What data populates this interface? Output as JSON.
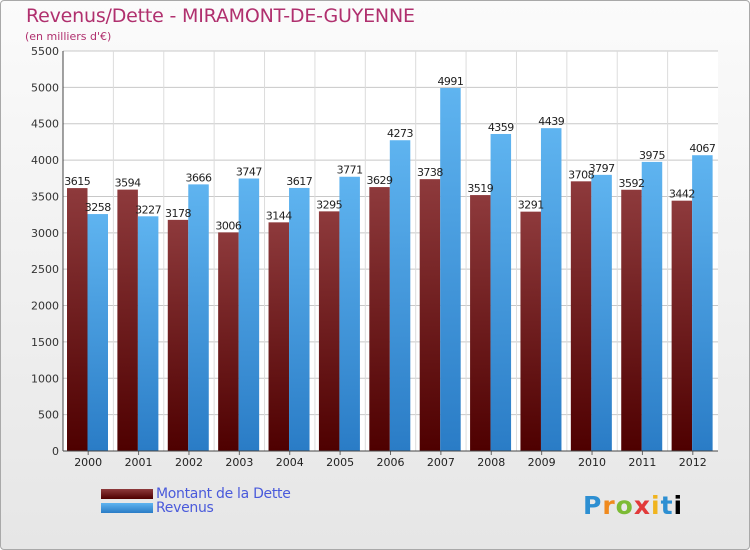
{
  "header": {
    "title": "Revenus/Dette - MIRAMONT-DE-GUYENNE",
    "subtitle": "(en milliers d'€)"
  },
  "chart_data": {
    "type": "bar",
    "title": "Revenus/Dette - MIRAMONT-DE-GUYENNE",
    "ylabel": "(en milliers d'€)",
    "xlabel": "",
    "ylim": [
      0,
      5500
    ],
    "yticks": [
      0,
      500,
      1000,
      1500,
      2000,
      2500,
      3000,
      3500,
      4000,
      4500,
      5000,
      5500
    ],
    "categories": [
      "2000",
      "2001",
      "2002",
      "2003",
      "2004",
      "2005",
      "2006",
      "2007",
      "2008",
      "2009",
      "2010",
      "2011",
      "2012"
    ],
    "series": [
      {
        "name": "Montant de la Dette",
        "color": "#7a1f22",
        "values": [
          3615,
          3594,
          3178,
          3006,
          3144,
          3295,
          3629,
          3738,
          3519,
          3291,
          3708,
          3592,
          3442
        ],
        "labels": [
          "3615",
          "3594",
          "3178",
          "3006",
          "3144",
          "3295",
          "3629",
          "3738",
          "3519",
          "3291",
          "3708",
          "3592",
          "3442"
        ]
      },
      {
        "name": "Revenus",
        "color": "#4aa3e6",
        "values": [
          3258,
          3227,
          3666,
          3747,
          3617,
          3771,
          4273,
          4991,
          4359,
          4439,
          3797,
          3975,
          4067
        ],
        "labels": [
          "3258",
          "3227",
          "3666",
          "3747",
          "3617",
          "3771",
          "4273",
          "4991",
          "4359",
          "4439",
          "3797",
          "3975",
          "4067"
        ]
      }
    ],
    "grid": true,
    "legend": "bottom-left"
  },
  "legend": {
    "items": [
      {
        "label": "Montant de la Dette",
        "color": "#7a1f22"
      },
      {
        "label": "Revenus",
        "color": "#4aa3e6"
      }
    ]
  },
  "logo": {
    "letters": [
      "P",
      "r",
      "o",
      "x",
      "i",
      "t",
      "i"
    ]
  }
}
